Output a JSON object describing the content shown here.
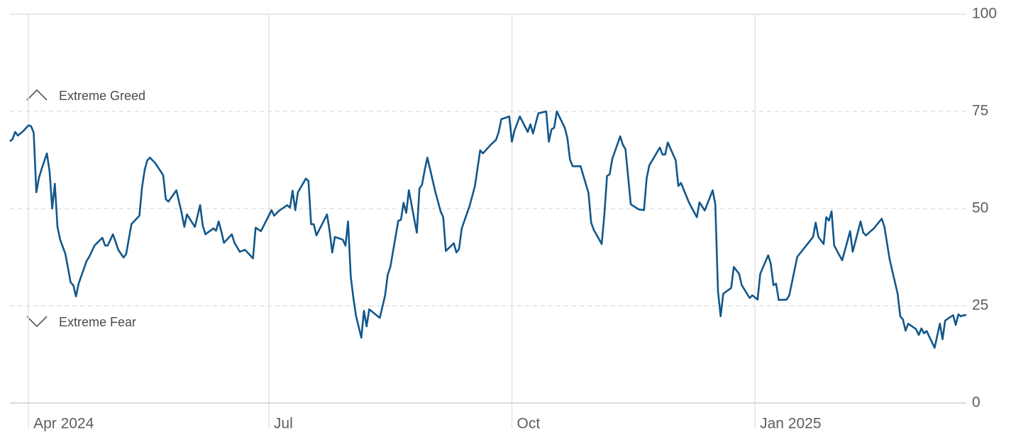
{
  "chart_data": {
    "type": "line",
    "annotations": [
      "Extreme Greed",
      "Extreme Fear"
    ],
    "xlim": [
      0,
      362
    ],
    "xticks": [
      {
        "value": 7,
        "label": "Apr 2024"
      },
      {
        "value": 98,
        "label": "Jul"
      },
      {
        "value": 190,
        "label": "Oct"
      },
      {
        "value": 282,
        "label": "Jan 2025"
      }
    ],
    "ylim": [
      0,
      100
    ],
    "yticks": [
      0,
      25,
      50,
      75,
      100
    ],
    "grid": true,
    "series": [
      {
        "color": "#12578b",
        "x": [
          0,
          1,
          2,
          3,
          5,
          7,
          8,
          9,
          10,
          11,
          12,
          14,
          15,
          16,
          17,
          18,
          19,
          21,
          23,
          24,
          25,
          26,
          29,
          30,
          32,
          35,
          36,
          37,
          39,
          40,
          41,
          43,
          44,
          46,
          49,
          50,
          51,
          52,
          53,
          55,
          58,
          59,
          60,
          63,
          65,
          66,
          67,
          70,
          72,
          73,
          74,
          77,
          78,
          79,
          80,
          81,
          84,
          85,
          87,
          89,
          92,
          93,
          95,
          98,
          99,
          100,
          102,
          105,
          106,
          107,
          108,
          109,
          112,
          113,
          114,
          115,
          116,
          120,
          121,
          122,
          123,
          126,
          127,
          128,
          129,
          130,
          131,
          133,
          134,
          135,
          136,
          140,
          142,
          143,
          144,
          147,
          148,
          149,
          150,
          151,
          154,
          155,
          156,
          157,
          158,
          161,
          163,
          164,
          165,
          168,
          169,
          170,
          171,
          174,
          176,
          178,
          179,
          182,
          184,
          185,
          186,
          189,
          190,
          191,
          193,
          196,
          197,
          198,
          200,
          203,
          204,
          205,
          206,
          207,
          210,
          211,
          212,
          213,
          216,
          219,
          220,
          221,
          224,
          225,
          226,
          227,
          228,
          231,
          232,
          233,
          235,
          238,
          240,
          241,
          242,
          246,
          247,
          248,
          249,
          252,
          253,
          254,
          257,
          260,
          261,
          263,
          266,
          267,
          268,
          269,
          270,
          273,
          274,
          276,
          277,
          280,
          281,
          283,
          284,
          287,
          288,
          289,
          290,
          291,
          294,
          295,
          298,
          304,
          305,
          306,
          308,
          309,
          310,
          311,
          312,
          315,
          317,
          318,
          319,
          322,
          323,
          324,
          327,
          330,
          331,
          333,
          336,
          337,
          338,
          339,
          340,
          343,
          344,
          345,
          346,
          347,
          350,
          352,
          353,
          354,
          357,
          358,
          359,
          360,
          361,
          362
        ],
        "values": [
          67.3,
          67.9,
          69.7,
          68.8,
          69.9,
          71.4,
          71.2,
          69.5,
          54.2,
          58,
          60.2,
          64.2,
          59.5,
          50,
          56.4,
          45.3,
          42,
          38.3,
          31,
          30.3,
          27.4,
          30.7,
          36.5,
          37.6,
          40.5,
          42.5,
          40.5,
          40.5,
          43.4,
          41.4,
          39.4,
          37.4,
          38.3,
          46,
          48.2,
          55.5,
          59.9,
          62.4,
          63.1,
          61.7,
          58.6,
          52.4,
          51.8,
          54.7,
          48.9,
          45.3,
          48.5,
          45.3,
          50.9,
          45.6,
          43.4,
          44.9,
          44.3,
          46.7,
          44.2,
          41.2,
          43.4,
          41.2,
          38.9,
          39.4,
          37.2,
          45.1,
          44.2,
          48.2,
          49.6,
          48.2,
          49.5,
          50.9,
          50.2,
          54.6,
          49.6,
          54.2,
          57.7,
          57.1,
          46,
          46,
          43.1,
          48.5,
          44.2,
          38.7,
          42.7,
          42,
          40.5,
          46.7,
          32.5,
          27,
          22.4,
          16.8,
          23.7,
          19.7,
          24.1,
          21.9,
          27.7,
          33,
          35,
          46.9,
          47.1,
          51.5,
          48.9,
          54.7,
          43.8,
          55.1,
          56.2,
          59.9,
          63.1,
          54.4,
          49.3,
          47.8,
          39.1,
          41.1,
          38.7,
          39.6,
          44.9,
          50.7,
          55.8,
          65,
          64.2,
          66.4,
          67.7,
          69.7,
          73,
          73.7,
          67.2,
          70.1,
          73.7,
          69.7,
          71.7,
          69.3,
          74.5,
          75,
          67.2,
          70.4,
          70.8,
          75,
          70.8,
          68.2,
          62.6,
          60.9,
          60.9,
          54,
          46.4,
          44.5,
          40.9,
          48.4,
          58.4,
          58.8,
          62.8,
          68.6,
          66.4,
          65.3,
          51.1,
          49.8,
          49.6,
          57.7,
          61.1,
          65.7,
          63.9,
          63.9,
          67,
          62.4,
          55.8,
          56.6,
          51.6,
          47.8,
          51.6,
          49.5,
          54.7,
          51.1,
          28.8,
          22.3,
          28.1,
          29.6,
          35,
          33.2,
          30.3,
          27,
          27.7,
          26.6,
          33.2,
          38,
          35.8,
          30.3,
          30.7,
          26.5,
          26.6,
          27.7,
          37.6,
          42.7,
          46.4,
          42.7,
          40.9,
          47.8,
          46.9,
          49.3,
          40.5,
          36.7,
          41.6,
          44.2,
          38.9,
          46.7,
          43.8,
          43.1,
          44.9,
          47.4,
          45.3,
          36.9,
          28.1,
          22.3,
          21.5,
          18.6,
          20.4,
          19,
          17.5,
          19.2,
          17.9,
          18.5,
          14.2,
          20.4,
          16.4,
          21.2,
          22.6,
          20.1,
          22.8,
          22.3,
          22.6,
          22.6
        ]
      }
    ]
  }
}
